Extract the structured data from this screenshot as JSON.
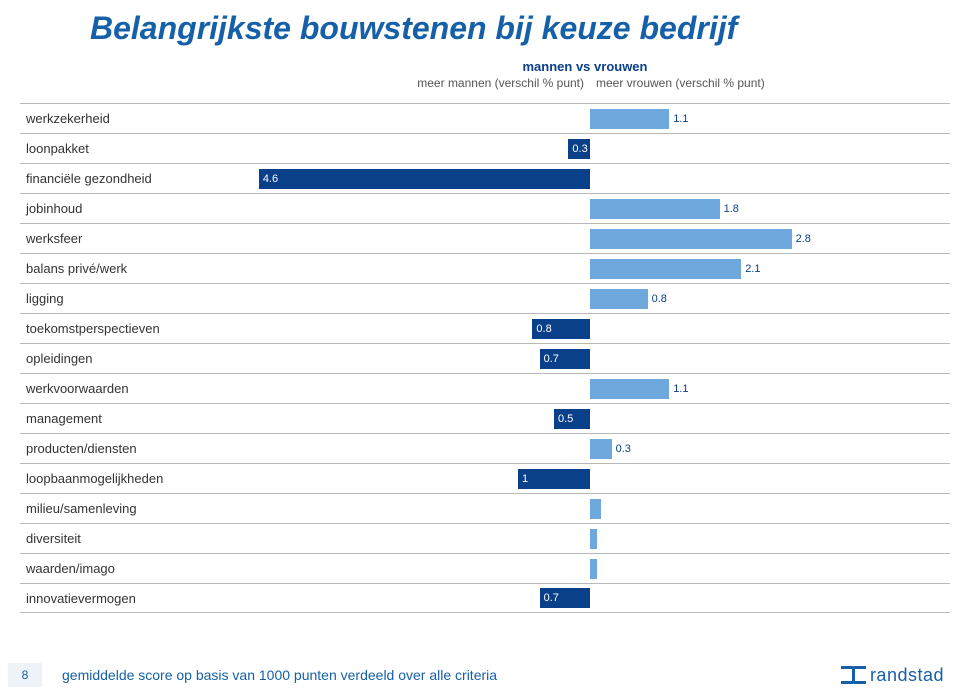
{
  "title": "Belangrijkste bouwstenen bij keuze bedrijf",
  "chart": {
    "type": "diverging-bar",
    "super_title": "mannen vs vrouwen",
    "left_col_header": "meer mannen (verschil % punt)",
    "right_col_header": "meer vrouwen (verschil % punt)",
    "max_value": 5.0,
    "colors": {
      "bar_left_dark": "#0a3f8a",
      "bar_right_light": "#6fa8dc",
      "background": "#ffffff",
      "gridline": "#b8b8b8",
      "title_color": "#1560a8",
      "label_color": "#333333",
      "header_text": "#555555"
    },
    "rows": [
      {
        "label": "werkzekerheid",
        "side": "right",
        "value": 1.1,
        "show_label": true
      },
      {
        "label": "loonpakket",
        "side": "left",
        "value": 0.3,
        "show_label": true
      },
      {
        "label": "financiële gezondheid",
        "side": "left",
        "value": 4.6,
        "show_label": true
      },
      {
        "label": "jobinhoud",
        "side": "right",
        "value": 1.8,
        "show_label": true
      },
      {
        "label": "werksfeer",
        "side": "right",
        "value": 2.8,
        "show_label": true
      },
      {
        "label": "balans privé/werk",
        "side": "right",
        "value": 2.1,
        "show_label": true
      },
      {
        "label": "ligging",
        "side": "right",
        "value": 0.8,
        "show_label": true
      },
      {
        "label": "toekomstperspectieven",
        "side": "left",
        "value": 0.8,
        "show_label": true
      },
      {
        "label": "opleidingen",
        "side": "left",
        "value": 0.7,
        "show_label": true
      },
      {
        "label": "werkvoorwaarden",
        "side": "right",
        "value": 1.1,
        "show_label": true
      },
      {
        "label": "management",
        "side": "left",
        "value": 0.5,
        "show_label": true
      },
      {
        "label": "producten/diensten",
        "side": "right",
        "value": 0.3,
        "show_label": true
      },
      {
        "label": "loopbaanmogelijkheden",
        "side": "left",
        "value": 1.0,
        "show_label": true,
        "value_text": "1"
      },
      {
        "label": "milieu/samenleving",
        "side": "right",
        "value": 0.15,
        "show_label": false
      },
      {
        "label": "diversiteit",
        "side": "right",
        "value": 0.1,
        "show_label": false
      },
      {
        "label": "waarden/imago",
        "side": "right",
        "value": 0.1,
        "show_label": false
      },
      {
        "label": "innovatievermogen",
        "side": "left",
        "value": 0.7,
        "show_label": true
      }
    ]
  },
  "footer": {
    "slide_number": "8",
    "text": "gemiddelde score op basis van 1000 punten verdeeld over alle criteria",
    "logo_text": "randstad"
  }
}
